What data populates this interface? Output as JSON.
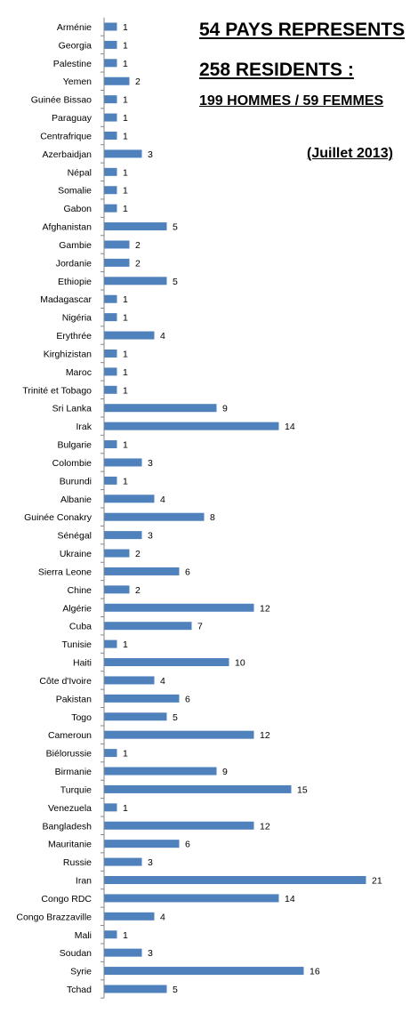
{
  "headline": {
    "pays": "54 PAYS REPRESENTS",
    "residents": "258 RESIDENTS :",
    "split": "199 HOMMES / 59 FEMMES",
    "date": "(Juillet 2013)"
  },
  "chart_data": {
    "type": "bar",
    "orientation": "horizontal",
    "title": "",
    "xlabel": "",
    "ylabel": "",
    "xlim": [
      0,
      21
    ],
    "grid": false,
    "legend": "none",
    "bar_color": "#4F81BD",
    "categories": [
      "Arménie",
      "Georgia",
      "Palestine",
      "Yemen",
      "Guinée Bissao",
      "Paraguay",
      "Centrafrique",
      "Azerbaidjan",
      "Népal",
      "Somalie",
      "Gabon",
      "Afghanistan",
      "Gambie",
      "Jordanie",
      "Ethiopie",
      "Madagascar",
      "Nigéria",
      "Erythrée",
      "Kirghizistan",
      "Maroc",
      "Trinité et Tobago",
      "Sri Lanka",
      "Irak",
      "Bulgarie",
      "Colombie",
      "Burundi",
      "Albanie",
      "Guinée Conakry",
      "Sénégal",
      "Ukraine",
      "Sierra Leone",
      "Chine",
      "Algérie",
      "Cuba",
      "Tunisie",
      "Haiti",
      "Côte d'Ivoire",
      "Pakistan",
      "Togo",
      "Cameroun",
      "Biélorussie",
      "Birmanie",
      "Turquie",
      "Venezuela",
      "Bangladesh",
      "Mauritanie",
      "Russie",
      "Iran",
      "Congo RDC",
      "Congo Brazzaville",
      "Mali",
      "Soudan",
      "Syrie",
      "Tchad"
    ],
    "values": [
      1,
      1,
      1,
      2,
      1,
      1,
      1,
      3,
      1,
      1,
      1,
      5,
      2,
      2,
      5,
      1,
      1,
      4,
      1,
      1,
      1,
      9,
      14,
      1,
      3,
      1,
      4,
      8,
      3,
      2,
      6,
      2,
      12,
      7,
      1,
      10,
      4,
      6,
      5,
      12,
      1,
      9,
      15,
      1,
      12,
      6,
      3,
      21,
      14,
      4,
      1,
      3,
      16,
      5
    ]
  }
}
